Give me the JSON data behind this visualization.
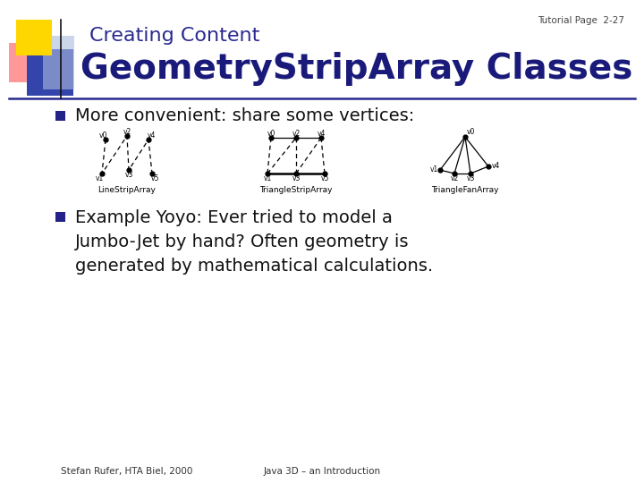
{
  "bg_color": "#ffffff",
  "title_small": "Creating Content",
  "title_large": "GeometryStripArray Classes",
  "page_label": "Tutorial Page  2-27",
  "title_small_color": "#2a2a90",
  "title_large_color": "#1a1a7a",
  "bullet_color": "#222288",
  "bullet1": "More convenient: share some vertices:",
  "bullet2_line1": "Example Yoyo: Ever tried to model a",
  "bullet2_line2": "Jumbo-Jet by hand? Often geometry is",
  "bullet2_line3": "generated by mathematical calculations.",
  "footer_left": "Stefan Rufer, HTA Biel, 2000",
  "footer_right": "Java 3D – an Introduction",
  "separator_color": "#2a2a90",
  "text_color": "#111111"
}
